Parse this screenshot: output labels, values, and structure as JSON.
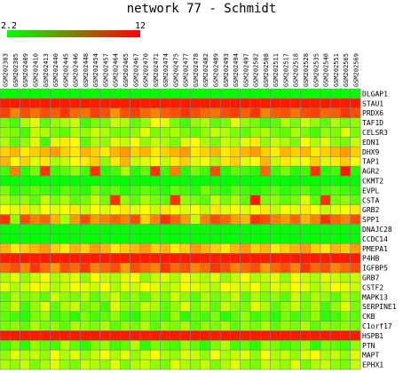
{
  "title": "network 77 - Schmidt",
  "legend": {
    "min_label": "2.2",
    "max_label": "12",
    "min_color": "#00ff00",
    "max_color": "#ff0000"
  },
  "chart_data": {
    "type": "heatmap",
    "title": "network 77 - Schmidt",
    "value_range": [
      2.2,
      12
    ],
    "color_low": "#00ff00",
    "color_high": "#ff0000",
    "columns": [
      "GSM202383",
      "GSM202385",
      "GSM202409",
      "GSM202410",
      "GSM202413",
      "GSM202440",
      "GSM202445",
      "GSM202446",
      "GSM202448",
      "GSM202454",
      "GSM202457",
      "GSM202464",
      "GSM202465",
      "GSM202467",
      "GSM202470",
      "GSM202471",
      "GSM202474",
      "GSM202475",
      "GSM202477",
      "GSM202478",
      "GSM202482",
      "GSM202489",
      "GSM202493",
      "GSM202494",
      "GSM202497",
      "GSM202502",
      "GSM202508",
      "GSM202511",
      "GSM202517",
      "GSM202518",
      "GSM202528",
      "GSM202535",
      "GSM202540",
      "GSM202551",
      "GSM202565",
      "GSM202569"
    ],
    "rows": [
      "DLGAP1",
      "STAU1",
      "PRDX6",
      "TAF1D",
      "CELSR3",
      "EDN1",
      "DHX9",
      "TAP1",
      "AGR2",
      "CKMT2",
      "EVPL",
      "CSTA",
      "GRB2",
      "SPP1",
      "DNAJC28",
      "CCDC14",
      "PMEPA1",
      "P4HB",
      "IGFBP5",
      "GRB7",
      "CSTF2",
      "MAPK13",
      "SERPINE1",
      "CKB",
      "C1orf17",
      "HSPB1",
      "PTN",
      "MAPT",
      "EPHX1"
    ],
    "values": [
      [
        2.2,
        2.2,
        2.2,
        2.2,
        2.2,
        2.2,
        2.2,
        2.2,
        2.2,
        2.2,
        2.2,
        2.2,
        2.2,
        2.2,
        2.2,
        2.2,
        2.2,
        2.2,
        2.2,
        2.2,
        2.2,
        2.2,
        2.2,
        2.2,
        2.2,
        2.2,
        2.2,
        2.2,
        2.2,
        2.2,
        2.2,
        2.2,
        2.2,
        2.2,
        2.2,
        2.2
      ],
      [
        11.5,
        11.5,
        11.5,
        11.5,
        11.5,
        11.5,
        11.5,
        11.5,
        11.5,
        11.5,
        11.5,
        11.5,
        11.5,
        11.5,
        11.5,
        11.5,
        11.5,
        11.5,
        11.5,
        11.5,
        11.5,
        11.5,
        11.5,
        11.5,
        11.5,
        11.5,
        11.5,
        11.5,
        11.5,
        11.5,
        11.5,
        11.5,
        11.5,
        11.5,
        11.5,
        11.5
      ],
      [
        10.8,
        9.5,
        10.5,
        9.8,
        10.5,
        10.2,
        11.0,
        10.0,
        9.8,
        10.8,
        10.5,
        9.2,
        10.5,
        10.8,
        10.0,
        9.5,
        10.2,
        10.5,
        11.0,
        10.5,
        10.0,
        9.8,
        10.5,
        10.8,
        10.2,
        11.0,
        9.5,
        10.2,
        10.5,
        9.8,
        10.5,
        10.8,
        10.0,
        10.2,
        11.0,
        10.5
      ],
      [
        4.5,
        3.5,
        5.5,
        6.5,
        4.0,
        5.0,
        5.5,
        6.0,
        3.5,
        4.5,
        4.5,
        6.0,
        5.5,
        4.0,
        5.0,
        7.0,
        6.5,
        4.5,
        3.5,
        5.0,
        5.5,
        4.0,
        4.5,
        6.5,
        5.0,
        4.5,
        3.5,
        4.0,
        5.5,
        4.5,
        6.0,
        5.0,
        4.0,
        5.5,
        4.5,
        5.0
      ],
      [
        5.0,
        4.5,
        3.5,
        6.0,
        5.5,
        4.5,
        4.0,
        5.5,
        5.0,
        6.0,
        5.5,
        4.5,
        4.5,
        5.0,
        6.5,
        4.5,
        5.0,
        5.5,
        4.5,
        4.0,
        5.0,
        6.0,
        5.5,
        4.5,
        4.0,
        5.0,
        5.5,
        4.5,
        4.0,
        5.5,
        4.5,
        3.5,
        5.0,
        4.5,
        6.5,
        4.5
      ],
      [
        5.5,
        4.0,
        5.0,
        6.5,
        3.5,
        6.5,
        7.5,
        7.0,
        4.0,
        5.5,
        5.0,
        6.5,
        6.0,
        7.0,
        5.0,
        6.0,
        5.5,
        4.5,
        6.5,
        7.0,
        5.5,
        4.5,
        6.0,
        5.5,
        6.5,
        7.5,
        5.0,
        6.0,
        5.5,
        4.5,
        7.0,
        5.5,
        6.5,
        5.0,
        4.5,
        6.0
      ],
      [
        8.0,
        8.5,
        7.5,
        8.0,
        8.5,
        9.0,
        8.0,
        7.5,
        8.5,
        8.0,
        7.5,
        8.5,
        9.0,
        8.0,
        8.5,
        7.5,
        8.0,
        8.5,
        9.0,
        7.5,
        8.0,
        8.5,
        7.5,
        8.0,
        8.5,
        9.0,
        8.0,
        7.5,
        8.5,
        8.0,
        8.5,
        7.5,
        8.0,
        8.5,
        9.0,
        8.0
      ],
      [
        8.5,
        7.0,
        8.0,
        6.5,
        7.5,
        5.5,
        6.0,
        7.0,
        7.5,
        8.0,
        5.0,
        7.5,
        8.5,
        6.0,
        6.5,
        7.0,
        6.0,
        7.5,
        8.0,
        6.5,
        7.0,
        5.5,
        7.5,
        8.0,
        6.5,
        7.0,
        8.5,
        6.0,
        7.5,
        6.5,
        7.0,
        8.0,
        6.5,
        7.5,
        8.0,
        7.0
      ],
      [
        3.5,
        9.5,
        3.0,
        4.5,
        11.0,
        3.5,
        4.0,
        5.0,
        3.5,
        11.0,
        3.0,
        3.5,
        5.5,
        3.0,
        4.0,
        11.0,
        3.5,
        9.5,
        3.0,
        4.5,
        3.5,
        10.5,
        3.0,
        4.0,
        3.5,
        3.0,
        10.0,
        3.5,
        4.5,
        3.0,
        3.5,
        11.0,
        3.0,
        3.5,
        11.5,
        3.0
      ],
      [
        2.2,
        2.2,
        2.2,
        2.2,
        2.2,
        2.2,
        2.2,
        2.2,
        2.2,
        2.2,
        2.2,
        2.2,
        2.2,
        2.2,
        2.2,
        2.2,
        2.2,
        2.2,
        2.2,
        2.2,
        2.2,
        2.2,
        2.2,
        2.2,
        2.2,
        2.2,
        2.2,
        2.2,
        2.2,
        2.2,
        2.2,
        2.2,
        2.2,
        2.2,
        2.2,
        2.2
      ],
      [
        4.5,
        3.0,
        3.5,
        4.0,
        3.5,
        3.0,
        4.0,
        3.5,
        3.0,
        4.5,
        3.5,
        4.0,
        3.0,
        3.5,
        4.0,
        3.5,
        3.0,
        4.0,
        3.5,
        3.0,
        4.5,
        3.5,
        3.0,
        4.0,
        3.5,
        3.0,
        3.5,
        4.0,
        3.0,
        3.5,
        4.0,
        3.0,
        3.5,
        4.0,
        3.5,
        3.0
      ],
      [
        5.5,
        4.5,
        5.0,
        4.0,
        6.0,
        4.5,
        5.5,
        4.0,
        4.5,
        6.0,
        4.5,
        11.0,
        5.0,
        4.0,
        5.5,
        4.5,
        4.0,
        11.0,
        5.0,
        4.5,
        4.0,
        6.0,
        4.5,
        5.5,
        4.0,
        11.5,
        4.5,
        5.0,
        4.0,
        4.5,
        6.5,
        4.0,
        11.0,
        4.5,
        5.0,
        4.0
      ],
      [
        7.0,
        6.5,
        7.5,
        6.0,
        7.0,
        6.5,
        7.0,
        7.5,
        6.0,
        7.0,
        6.5,
        7.0,
        7.5,
        6.5,
        7.0,
        6.0,
        7.5,
        7.0,
        6.5,
        7.0,
        6.0,
        7.5,
        6.5,
        7.0,
        6.5,
        7.0,
        7.5,
        6.0,
        7.0,
        6.5,
        7.5,
        7.0,
        6.0,
        6.5,
        7.0,
        7.5
      ],
      [
        11.0,
        5.0,
        10.5,
        9.5,
        10.0,
        8.5,
        5.5,
        9.0,
        10.5,
        9.0,
        9.5,
        10.0,
        9.5,
        10.5,
        8.0,
        9.5,
        11.0,
        10.0,
        9.0,
        6.0,
        9.5,
        10.5,
        10.0,
        9.0,
        8.5,
        11.0,
        10.5,
        9.5,
        9.0,
        10.0,
        8.5,
        9.5,
        11.0,
        10.0,
        9.5,
        10.5
      ],
      [
        2.2,
        2.2,
        2.2,
        2.2,
        2.2,
        2.2,
        2.2,
        2.2,
        2.2,
        2.2,
        2.2,
        2.2,
        2.2,
        2.2,
        2.2,
        2.2,
        2.2,
        2.2,
        2.2,
        2.2,
        2.2,
        2.2,
        2.2,
        2.2,
        2.2,
        2.2,
        2.2,
        2.2,
        2.2,
        2.2,
        2.2,
        2.2,
        2.2,
        2.2,
        2.2,
        2.2
      ],
      [
        2.2,
        2.2,
        2.2,
        2.2,
        2.2,
        2.2,
        2.2,
        2.2,
        2.2,
        2.2,
        2.2,
        2.2,
        2.2,
        2.2,
        2.2,
        2.2,
        2.2,
        2.2,
        2.2,
        2.2,
        2.2,
        2.2,
        2.2,
        2.2,
        2.2,
        2.2,
        2.2,
        2.2,
        2.2,
        2.2,
        2.2,
        2.2,
        2.2,
        2.2,
        2.2,
        2.2
      ],
      [
        8.5,
        7.5,
        8.0,
        8.5,
        9.0,
        8.0,
        7.5,
        8.5,
        8.0,
        9.0,
        8.5,
        7.5,
        8.0,
        8.5,
        9.0,
        8.0,
        8.5,
        7.5,
        8.0,
        9.0,
        8.5,
        8.0,
        7.5,
        8.5,
        9.0,
        8.0,
        8.5,
        7.5,
        8.0,
        8.5,
        9.0,
        8.0,
        7.5,
        8.5,
        8.0,
        9.0
      ],
      [
        11.5,
        11.5,
        11.5,
        11.5,
        11.5,
        11.5,
        11.5,
        11.5,
        11.5,
        11.5,
        11.5,
        11.5,
        11.5,
        11.5,
        11.5,
        11.5,
        11.5,
        11.5,
        11.5,
        11.5,
        11.5,
        11.5,
        11.5,
        11.5,
        11.5,
        11.5,
        11.5,
        11.5,
        11.5,
        11.5,
        11.5,
        11.5,
        11.5,
        11.5,
        11.5,
        11.5
      ],
      [
        10.0,
        10.5,
        9.5,
        11.0,
        10.0,
        9.0,
        10.5,
        10.0,
        11.0,
        9.5,
        10.0,
        10.5,
        9.0,
        10.5,
        10.0,
        9.5,
        11.0,
        10.0,
        10.5,
        9.5,
        10.0,
        11.0,
        10.5,
        9.5,
        10.0,
        10.5,
        9.0,
        10.0,
        10.5,
        9.5,
        11.0,
        10.0,
        10.5,
        9.5,
        10.0,
        10.5
      ],
      [
        5.5,
        6.5,
        5.0,
        6.0,
        7.0,
        5.5,
        6.0,
        6.5,
        5.0,
        7.0,
        6.0,
        5.5,
        6.5,
        7.0,
        5.0,
        6.0,
        6.5,
        5.5,
        7.0,
        6.0,
        5.5,
        6.5,
        5.0,
        6.0,
        7.0,
        5.5,
        6.0,
        6.5,
        5.0,
        7.0,
        6.0,
        5.5,
        6.5,
        6.0,
        5.5,
        6.0
      ],
      [
        6.5,
        5.5,
        6.0,
        7.0,
        6.5,
        5.5,
        6.0,
        7.0,
        6.5,
        6.0,
        7.0,
        5.5,
        6.5,
        6.0,
        7.0,
        6.5,
        5.5,
        6.0,
        7.0,
        6.5,
        6.0,
        5.5,
        7.0,
        6.5,
        6.0,
        7.0,
        5.5,
        6.5,
        6.0,
        7.0,
        6.5,
        5.5,
        6.0,
        7.0,
        6.5,
        6.0
      ],
      [
        4.0,
        5.5,
        4.5,
        5.0,
        4.0,
        6.0,
        5.0,
        4.5,
        5.5,
        4.0,
        5.0,
        6.0,
        4.5,
        5.0,
        4.0,
        5.5,
        4.5,
        6.0,
        5.0,
        4.0,
        5.5,
        4.5,
        5.0,
        6.0,
        4.0,
        5.5,
        4.5,
        5.0,
        4.0,
        6.0,
        4.5,
        5.5,
        5.0,
        4.0,
        5.5,
        4.5
      ],
      [
        4.5,
        6.0,
        3.5,
        5.0,
        6.5,
        4.0,
        5.5,
        6.0,
        4.5,
        5.0,
        3.5,
        6.5,
        5.0,
        4.5,
        6.0,
        5.5,
        4.0,
        5.0,
        6.5,
        4.5,
        5.5,
        4.0,
        6.0,
        5.0,
        4.5,
        6.5,
        5.5,
        4.0,
        5.0,
        6.0,
        4.5,
        5.5,
        3.5,
        5.0,
        6.5,
        4.5
      ],
      [
        4.0,
        3.5,
        3.0,
        4.5,
        5.0,
        3.5,
        4.0,
        3.0,
        4.5,
        3.5,
        4.0,
        5.0,
        3.5,
        3.0,
        4.5,
        4.0,
        3.5,
        5.0,
        3.0,
        4.0,
        3.5,
        4.5,
        3.0,
        4.0,
        5.0,
        3.5,
        4.0,
        3.0,
        4.5,
        3.5,
        4.0,
        5.0,
        3.0,
        3.5,
        4.5,
        4.0
      ],
      [
        4.5,
        5.0,
        4.0,
        5.5,
        4.5,
        5.0,
        4.0,
        5.5,
        5.0,
        4.5,
        5.5,
        4.0,
        5.0,
        4.5,
        5.5,
        4.0,
        5.0,
        4.5,
        5.5,
        4.0,
        5.0,
        4.5,
        5.5,
        4.0,
        5.0,
        4.5,
        5.5,
        4.0,
        5.0,
        4.5,
        5.5,
        4.0,
        5.0,
        4.5,
        5.0,
        4.5
      ],
      [
        11.5,
        11.5,
        11.5,
        11.5,
        11.5,
        11.5,
        11.5,
        11.5,
        11.5,
        11.5,
        11.5,
        11.5,
        11.5,
        11.5,
        11.5,
        11.5,
        11.5,
        11.5,
        11.5,
        11.5,
        11.5,
        11.5,
        11.5,
        11.5,
        11.5,
        11.5,
        11.5,
        11.5,
        11.5,
        11.5,
        11.5,
        11.5,
        11.5,
        11.5,
        11.5,
        11.5
      ],
      [
        3.5,
        4.5,
        3.0,
        5.0,
        4.0,
        3.5,
        5.5,
        4.0,
        3.0,
        4.5,
        5.0,
        3.5,
        4.0,
        5.5,
        3.0,
        4.5,
        4.0,
        3.5,
        5.0,
        4.0,
        3.0,
        4.5,
        5.5,
        3.5,
        4.0,
        3.0,
        5.0,
        4.5,
        3.5,
        4.0,
        5.0,
        3.0,
        4.5,
        4.0,
        3.5,
        5.0
      ],
      [
        5.0,
        6.5,
        5.5,
        6.0,
        5.0,
        7.0,
        5.5,
        6.5,
        5.0,
        6.0,
        7.0,
        5.5,
        6.5,
        5.0,
        6.0,
        7.0,
        5.5,
        5.0,
        6.5,
        6.0,
        5.0,
        7.0,
        5.5,
        6.0,
        6.5,
        5.0,
        7.0,
        5.5,
        6.0,
        5.0,
        6.5,
        7.0,
        5.5,
        6.0,
        5.0,
        6.5
      ],
      [
        5.5,
        5.0,
        6.0,
        4.5,
        5.5,
        6.5,
        5.0,
        4.5,
        6.0,
        5.5,
        5.0,
        6.5,
        4.5,
        5.5,
        6.0,
        5.0,
        4.5,
        6.5,
        5.5,
        5.0,
        6.0,
        4.5,
        5.5,
        6.5,
        5.0,
        4.5,
        6.0,
        5.5,
        5.0,
        6.5,
        4.5,
        5.5,
        6.0,
        5.0,
        4.5,
        6.0
      ]
    ]
  }
}
